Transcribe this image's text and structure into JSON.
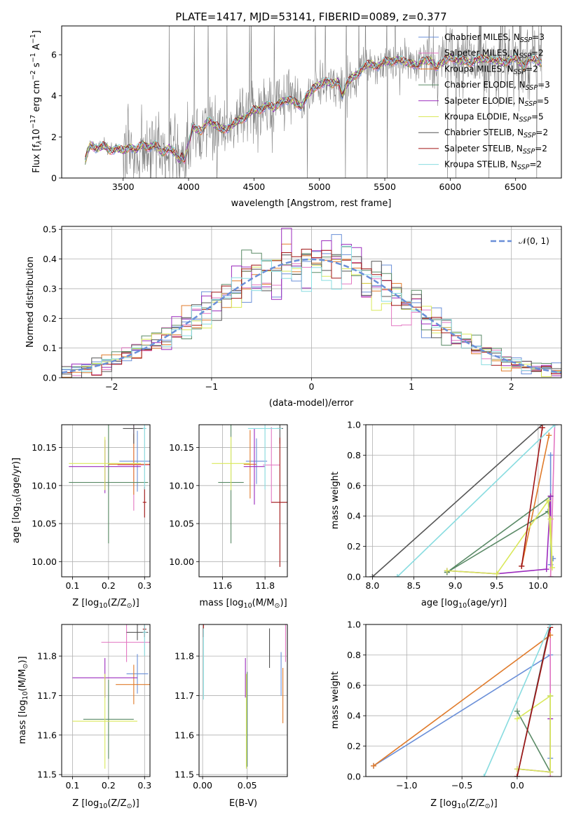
{
  "colors": {
    "Chabrier MILES": "#6a8fd8",
    "Salpeter MILES": "#e377c2",
    "Kroupa MILES": "#e07b2b",
    "Chabrier ELODIE": "#5a8a66",
    "Salpeter ELODIE": "#9b2bbd",
    "Kroupa ELODIE": "#d9e85a",
    "Chabrier STELIB": "#555555",
    "Salpeter STELIB": "#a01515",
    "Kroupa STELIB": "#88dce0",
    "data_spectrum": "#808080",
    "normal_curve": "#6a8fd8"
  },
  "chart_data": [
    {
      "type": "line",
      "id": "spectrum",
      "title": "PLATE=1417, MJD=53141, FIBERID=0089, z=0.377",
      "xlabel": "wavelength [Angstrom, rest frame]",
      "ylabel_parts": [
        "Flux [f",
        "λ",
        "10",
        "−17",
        " erg cm",
        "−2",
        " s",
        "−1",
        " A",
        "−1",
        "]"
      ],
      "xlim": [
        3030,
        6850
      ],
      "ylim": [
        0,
        7.4
      ],
      "xticks": [
        3500,
        4000,
        4500,
        5000,
        5500,
        6000,
        6500
      ],
      "yticks": [
        0,
        2,
        4,
        6
      ],
      "grid": false,
      "legend_position": "top-right",
      "series": [
        {
          "name": "Chabrier MILES",
          "n_ssp": "3"
        },
        {
          "name": "Salpeter MILES",
          "n_ssp": "2"
        },
        {
          "name": "Kroupa MILES",
          "n_ssp": "2"
        },
        {
          "name": "Chabrier ELODIE",
          "n_ssp": "3"
        },
        {
          "name": "Salpeter ELODIE",
          "n_ssp": "5"
        },
        {
          "name": "Kroupa ELODIE",
          "n_ssp": "5"
        },
        {
          "name": "Chabrier STELIB",
          "n_ssp": "2"
        },
        {
          "name": "Salpeter STELIB",
          "n_ssp": "2"
        },
        {
          "name": "Kroupa STELIB",
          "n_ssp": "2"
        }
      ],
      "nssp_label": "N",
      "nssp_sub": "SSP",
      "model_x": [
        3210,
        3225,
        3250,
        3300,
        3350,
        3400,
        3450,
        3500,
        3550,
        3600,
        3650,
        3700,
        3750,
        3800,
        3850,
        3900,
        3934,
        3950,
        3968,
        3990,
        4030,
        4100,
        4150,
        4200,
        4250,
        4300,
        4340,
        4400,
        4450,
        4500,
        4550,
        4600,
        4650,
        4700,
        4750,
        4800,
        4861,
        4900,
        4950,
        5000,
        5050,
        5100,
        5150,
        5175,
        5200,
        5250,
        5300,
        5350,
        5400,
        5450,
        5500,
        5550,
        5600,
        5650,
        5700,
        5750,
        5800,
        5850,
        5890,
        5950,
        6000,
        6050,
        6100,
        6150,
        6200,
        6250,
        6300,
        6350,
        6400,
        6450,
        6500,
        6563,
        6600,
        6650,
        6700
      ],
      "model_y": [
        0.8,
        1.2,
        1.6,
        1.45,
        1.55,
        1.35,
        1.45,
        1.3,
        1.55,
        1.35,
        1.65,
        1.5,
        1.6,
        1.25,
        1.45,
        1.2,
        0.85,
        1.1,
        0.85,
        1.35,
        2.5,
        2.25,
        2.85,
        2.6,
        2.35,
        2.45,
        2.6,
        2.85,
        3.05,
        3.3,
        3.35,
        3.55,
        3.4,
        3.7,
        3.75,
        3.8,
        3.45,
        3.95,
        4.35,
        4.5,
        4.75,
        4.55,
        4.7,
        4.0,
        4.5,
        4.85,
        5.15,
        5.45,
        5.55,
        5.45,
        5.65,
        5.7,
        5.75,
        5.65,
        5.6,
        5.45,
        5.75,
        5.7,
        5.4,
        5.7,
        5.85,
        5.75,
        5.7,
        5.6,
        5.8,
        5.75,
        5.85,
        5.7,
        5.6,
        5.75,
        5.8,
        5.45,
        5.8,
        5.75,
        5.6
      ]
    },
    {
      "type": "histogram",
      "id": "residuals",
      "xlabel": "(data-model)/error",
      "ylabel": "Normed distribution",
      "xlim": [
        -2.5,
        2.5
      ],
      "ylim": [
        0,
        0.51
      ],
      "xticks": [
        -2,
        -1,
        0,
        1,
        2
      ],
      "yticks": [
        0.0,
        0.1,
        0.2,
        0.3,
        0.4,
        0.5
      ],
      "grid": true,
      "legend_position": "top-right",
      "legend": "𝒩(0, 1)",
      "bin_width": 0.1,
      "bin_start": -2.5,
      "reference_curve": "normal(0,1)"
    },
    {
      "type": "scatter",
      "id": "age_vs_Z",
      "xlabel": "Z [log10(Z/Z⊙)]",
      "xlabel_parts": [
        "Z [log",
        "10",
        "(Z/Z",
        "⊙",
        ")]"
      ],
      "ylabel_parts": [
        "age  [log",
        "10",
        "(age/yr)]"
      ],
      "xlim": [
        0.07,
        0.315
      ],
      "ylim": [
        9.98,
        10.18
      ],
      "xticks": [
        0.1,
        0.2,
        0.3
      ],
      "yticks": [
        10.0,
        10.05,
        10.1,
        10.15
      ],
      "grid": true,
      "crosses": [
        {
          "series": "Chabrier MILES",
          "x": 0.28,
          "xerr": 0.05,
          "y": 10.132,
          "yerr": 0.04
        },
        {
          "series": "Salpeter MILES",
          "x": 0.27,
          "xerr": 0.045,
          "y": 10.127,
          "yerr": 0.06
        },
        {
          "series": "Kroupa MILES",
          "x": 0.27,
          "xerr": 0.07,
          "y": 10.128,
          "yerr": 0.04
        },
        {
          "series": "Chabrier ELODIE",
          "x": 0.2,
          "xerr": 0.11,
          "y": 10.104,
          "yerr": 0.08
        },
        {
          "series": "Salpeter ELODIE",
          "x": 0.19,
          "xerr": 0.1,
          "y": 10.125,
          "yerr": 0.035
        },
        {
          "series": "Kroupa ELODIE",
          "x": 0.19,
          "xerr": 0.1,
          "y": 10.129,
          "yerr": 0.035
        },
        {
          "series": "Chabrier STELIB",
          "x": 0.27,
          "xerr": 0.03,
          "y": 10.175,
          "yerr": 0.02
        },
        {
          "series": "Salpeter STELIB",
          "x": 0.3,
          "xerr": 0.005,
          "y": 10.078,
          "yerr": 0.02
        },
        {
          "series": "Kroupa STELIB",
          "x": 0.3,
          "xerr": 0.005,
          "y": 10.175,
          "yerr": 0.08
        }
      ]
    },
    {
      "type": "scatter",
      "id": "age_vs_mass",
      "xlabel_parts": [
        "mass [log",
        "10",
        "(M/M",
        "⊙",
        ")]"
      ],
      "ylabel": "",
      "xlim": [
        11.49,
        11.905
      ],
      "ylim": [
        9.98,
        10.18
      ],
      "xticks": [
        11.6,
        11.8
      ],
      "yticks": [
        10.0,
        10.05,
        10.1,
        10.15
      ],
      "grid": true,
      "crosses": [
        {
          "series": "Chabrier MILES",
          "x": 11.76,
          "xerr": 0.05,
          "y": 10.132,
          "yerr": 0.03
        },
        {
          "series": "Salpeter MILES",
          "x": 11.83,
          "xerr": 0.04,
          "y": 10.127,
          "yerr": 0.05
        },
        {
          "series": "Kroupa MILES",
          "x": 11.73,
          "xerr": 0.03,
          "y": 10.128,
          "yerr": 0.045
        },
        {
          "series": "Chabrier ELODIE",
          "x": 11.64,
          "xerr": 0.06,
          "y": 10.104,
          "yerr": 0.08
        },
        {
          "series": "Salpeter ELODIE",
          "x": 11.75,
          "xerr": 0.05,
          "y": 10.125,
          "yerr": 0.05
        },
        {
          "series": "Kroupa ELODIE",
          "x": 11.64,
          "xerr": 0.09,
          "y": 10.129,
          "yerr": 0.035
        },
        {
          "series": "Chabrier STELIB",
          "x": 11.87,
          "xerr": 0.015,
          "y": 10.175,
          "yerr": 0.02
        },
        {
          "series": "Salpeter STELIB",
          "x": 11.87,
          "xerr": 0.04,
          "y": 10.078,
          "yerr": 0.085
        },
        {
          "series": "Kroupa STELIB",
          "x": 11.8,
          "xerr": 0.08,
          "y": 10.175,
          "yerr": 0.08
        }
      ]
    },
    {
      "type": "line",
      "id": "massweight_vs_age",
      "xlabel_parts": [
        "age  [log",
        "10",
        "(age/yr)]"
      ],
      "ylabel": "mass weight",
      "xlim": [
        7.92,
        10.28
      ],
      "ylim": [
        0,
        1
      ],
      "xticks": [
        8.0,
        8.5,
        9.0,
        9.5,
        10.0
      ],
      "yticks": [
        0.0,
        0.2,
        0.4,
        0.6,
        0.8,
        1.0
      ],
      "grid": true,
      "series": [
        {
          "name": "Chabrier MILES",
          "x": [
            10.15,
            10.15,
            10.18
          ],
          "y": [
            0.8,
            0.08,
            0.12
          ]
        },
        {
          "name": "Salpeter MILES",
          "x": [
            10.15,
            10.2
          ],
          "y": [
            0.0,
            1.0
          ]
        },
        {
          "name": "Kroupa MILES",
          "x": [
            9.8,
            10.13
          ],
          "y": [
            0.07,
            0.93
          ]
        },
        {
          "name": "Chabrier ELODIE",
          "x": [
            8.9,
            10.15,
            10.12,
            8.9
          ],
          "y": [
            0.03,
            0.53,
            0.43,
            0.03
          ]
        },
        {
          "name": "Salpeter ELODIE",
          "x": [
            8.9,
            9.5,
            10.1,
            10.15,
            10.15
          ],
          "y": [
            0.04,
            0.02,
            0.05,
            0.53,
            0.38
          ]
        },
        {
          "name": "Kroupa ELODIE",
          "x": [
            8.9,
            9.5,
            10.12,
            10.17,
            10.15
          ],
          "y": [
            0.04,
            0.02,
            0.5,
            0.06,
            0.38
          ]
        },
        {
          "name": "Chabrier STELIB",
          "x": [
            8.0,
            10.05
          ],
          "y": [
            0.0,
            1.0
          ]
        },
        {
          "name": "Salpeter STELIB",
          "x": [
            9.8,
            10.05
          ],
          "y": [
            0.07,
            0.98
          ]
        },
        {
          "name": "Kroupa STELIB",
          "x": [
            8.3,
            10.2
          ],
          "y": [
            0.0,
            1.0
          ]
        }
      ]
    },
    {
      "type": "scatter",
      "id": "mass_vs_Z",
      "xlabel_parts": [
        "Z [log",
        "10",
        "(Z/Z",
        "⊙",
        ")]"
      ],
      "ylabel_parts": [
        "mass [log",
        "10",
        "(M/M",
        "⊙",
        ")]"
      ],
      "xlim": [
        0.07,
        0.315
      ],
      "ylim": [
        11.495,
        11.88
      ],
      "xticks": [
        0.1,
        0.2,
        0.3
      ],
      "yticks": [
        11.5,
        11.6,
        11.7,
        11.8
      ],
      "grid": true,
      "crosses": [
        {
          "series": "Chabrier MILES",
          "x": 0.28,
          "xerr": 0.03,
          "y": 11.755,
          "yerr": 0.05
        },
        {
          "series": "Salpeter MILES",
          "x": 0.25,
          "xerr": 0.07,
          "y": 11.835,
          "yerr": 0.05
        },
        {
          "series": "Kroupa MILES",
          "x": 0.27,
          "xerr": 0.05,
          "y": 11.728,
          "yerr": 0.05
        },
        {
          "series": "Chabrier ELODIE",
          "x": 0.2,
          "xerr": 0.07,
          "y": 11.64,
          "yerr": 0.1
        },
        {
          "series": "Salpeter ELODIE",
          "x": 0.19,
          "xerr": 0.09,
          "y": 11.745,
          "yerr": 0.05
        },
        {
          "series": "Kroupa ELODIE",
          "x": 0.19,
          "xerr": 0.09,
          "y": 11.635,
          "yerr": 0.12
        },
        {
          "series": "Chabrier STELIB",
          "x": 0.28,
          "xerr": 0.03,
          "y": 11.86,
          "yerr": 0.02
        },
        {
          "series": "Salpeter STELIB",
          "x": 0.3,
          "xerr": 0.005,
          "y": 11.868,
          "yerr": 0.02
        },
        {
          "series": "Kroupa STELIB",
          "x": 0.3,
          "xerr": 0.005,
          "y": 11.86,
          "yerr": 0.06
        }
      ]
    },
    {
      "type": "scatter",
      "id": "mass_vs_ebv",
      "xlabel": "E(B-V)",
      "ylabel": "",
      "xlim": [
        -0.004,
        0.095
      ],
      "ylim": [
        11.495,
        11.88
      ],
      "xticks": [
        0.0,
        0.05
      ],
      "yticks": [
        11.5,
        11.6,
        11.7,
        11.8
      ],
      "grid": true,
      "crosses": [
        {
          "series": "Chabrier MILES",
          "x": 0.088,
          "xerr": 0.0,
          "y": 11.755,
          "yerr": 0.055
        },
        {
          "series": "Salpeter MILES",
          "x": 0.093,
          "xerr": 0.0,
          "y": 11.835,
          "yerr": 0.05
        },
        {
          "series": "Kroupa MILES",
          "x": 0.09,
          "xerr": 0.0,
          "y": 11.7,
          "yerr": 0.07
        },
        {
          "series": "Chabrier ELODIE",
          "x": 0.05,
          "xerr": 0.0,
          "y": 11.64,
          "yerr": 0.12
        },
        {
          "series": "Salpeter ELODIE",
          "x": 0.048,
          "xerr": 0.0,
          "y": 11.745,
          "yerr": 0.05
        },
        {
          "series": "Kroupa ELODIE",
          "x": 0.049,
          "xerr": 0.0,
          "y": 11.635,
          "yerr": 0.12
        },
        {
          "series": "Chabrier STELIB",
          "x": 0.075,
          "xerr": 0.0,
          "y": 11.82,
          "yerr": 0.05
        },
        {
          "series": "Salpeter STELIB",
          "x": 0.001,
          "xerr": 0.0,
          "y": 11.868,
          "yerr": 0.02
        },
        {
          "series": "Kroupa STELIB",
          "x": 0.001,
          "xerr": 0.0,
          "y": 11.78,
          "yerr": 0.09
        }
      ]
    },
    {
      "type": "line",
      "id": "massweight_vs_Z",
      "xlabel_parts": [
        "Z [log",
        "10",
        "(Z/Z",
        "⊙",
        ")]"
      ],
      "ylabel": "mass weight",
      "xlim": [
        -1.37,
        0.4
      ],
      "ylim": [
        0,
        1
      ],
      "xticks": [
        -1.0,
        -0.5,
        0.0
      ],
      "yticks": [
        0.0,
        0.2,
        0.4,
        0.6,
        0.8,
        1.0
      ],
      "grid": true,
      "series": [
        {
          "name": "Chabrier MILES",
          "x": [
            -1.3,
            0.3,
            0.3
          ],
          "y": [
            0.07,
            0.8,
            0.12
          ]
        },
        {
          "name": "Salpeter MILES",
          "x": [
            0.3,
            0.3
          ],
          "y": [
            1.0,
            0.0
          ]
        },
        {
          "name": "Kroupa MILES",
          "x": [
            -1.3,
            0.3
          ],
          "y": [
            0.07,
            0.93
          ]
        },
        {
          "name": "Chabrier ELODIE",
          "x": [
            0.0,
            0.3,
            0.3
          ],
          "y": [
            0.43,
            0.03,
            0.53
          ]
        },
        {
          "name": "Salpeter ELODIE",
          "x": [
            0.0,
            0.3,
            0.3
          ],
          "y": [
            0.05,
            0.03,
            0.38
          ]
        },
        {
          "name": "Kroupa ELODIE",
          "x": [
            0.0,
            0.3,
            0.3,
            0.0
          ],
          "y": [
            0.38,
            0.53,
            0.03,
            0.05
          ]
        },
        {
          "name": "Chabrier STELIB",
          "x": [
            0.0,
            0.3
          ],
          "y": [
            0.0,
            1.0
          ]
        },
        {
          "name": "Salpeter STELIB",
          "x": [
            0.0,
            0.3
          ],
          "y": [
            0.0,
            0.98
          ]
        },
        {
          "name": "Kroupa STELIB",
          "x": [
            -0.3,
            0.3
          ],
          "y": [
            0.0,
            1.0
          ]
        }
      ]
    }
  ]
}
